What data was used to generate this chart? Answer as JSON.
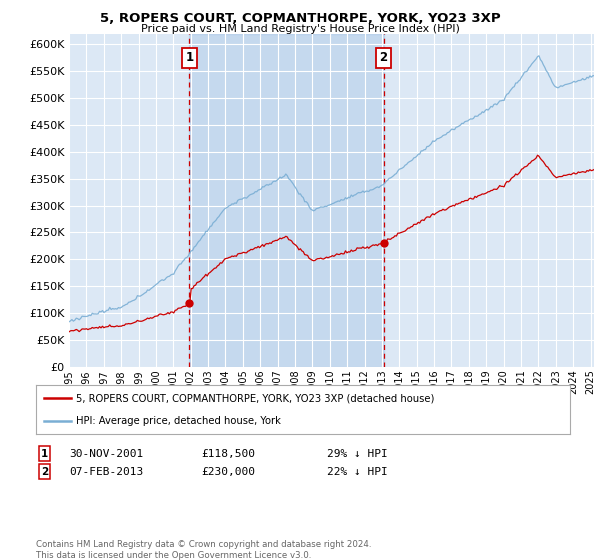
{
  "title": "5, ROPERS COURT, COPMANTHORPE, YORK, YO23 3XP",
  "subtitle": "Price paid vs. HM Land Registry's House Price Index (HPI)",
  "ylim": [
    0,
    620000
  ],
  "yticks": [
    0,
    50000,
    100000,
    150000,
    200000,
    250000,
    300000,
    350000,
    400000,
    450000,
    500000,
    550000,
    600000
  ],
  "sale1_price": 118500,
  "sale2_price": 230000,
  "sale1_x": 2001.92,
  "sale2_x": 2013.1,
  "legend_line1": "5, ROPERS COURT, COPMANTHORPE, YORK, YO23 3XP (detached house)",
  "legend_line2": "HPI: Average price, detached house, York",
  "footer": "Contains HM Land Registry data © Crown copyright and database right 2024.\nThis data is licensed under the Open Government Licence v3.0.",
  "bg_color": "#dce8f5",
  "red_color": "#cc0000",
  "blue_color": "#7aaed4",
  "grid_color": "#ffffff",
  "xmin": 1995,
  "xmax": 2025.2
}
